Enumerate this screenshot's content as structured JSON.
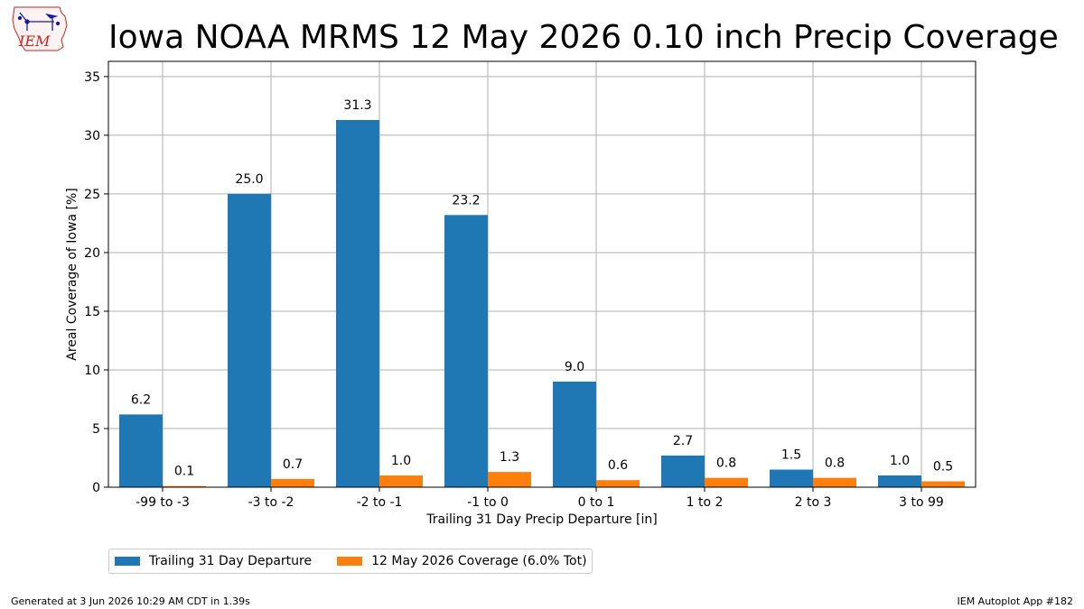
{
  "header": {
    "title": "Iowa NOAA MRMS 12 May 2026 0.10 inch Precip Coverage",
    "logo_text": "IEM"
  },
  "chart_data": {
    "type": "bar",
    "xlabel": "Trailing 31 Day Precip Departure [in]",
    "ylabel": "Areal Coverage of Iowa [%]",
    "ylim": [
      0,
      36.3
    ],
    "yticks": [
      0,
      5,
      10,
      15,
      20,
      25,
      30,
      35
    ],
    "grid": true,
    "legend_placement": "below-left",
    "categories": [
      "-99 to -3",
      "-3 to -2",
      "-2 to -1",
      "-1 to 0",
      "0 to 1",
      "1 to 2",
      "2 to 3",
      "3 to 99"
    ],
    "series": [
      {
        "name": "Trailing 31 Day Departure",
        "color": "#1f77b4",
        "values": [
          6.2,
          25.0,
          31.3,
          23.2,
          9.0,
          2.7,
          1.5,
          1.0
        ],
        "labels": [
          "6.2",
          "25.0",
          "31.3",
          "23.2",
          "9.0",
          "2.7",
          "1.5",
          "1.0"
        ]
      },
      {
        "name": "12 May 2026 Coverage (6.0% Tot)",
        "color": "#ff7f0e",
        "values": [
          0.1,
          0.7,
          1.0,
          1.3,
          0.6,
          0.8,
          0.8,
          0.5
        ],
        "labels": [
          "0.1",
          "0.7",
          "1.0",
          "1.3",
          "0.6",
          "0.8",
          "0.8",
          "0.5"
        ]
      }
    ]
  },
  "footer": {
    "generated": "Generated at 3 Jun 2026 10:29 AM CDT in 1.39s",
    "app": "IEM Autoplot App #182"
  }
}
